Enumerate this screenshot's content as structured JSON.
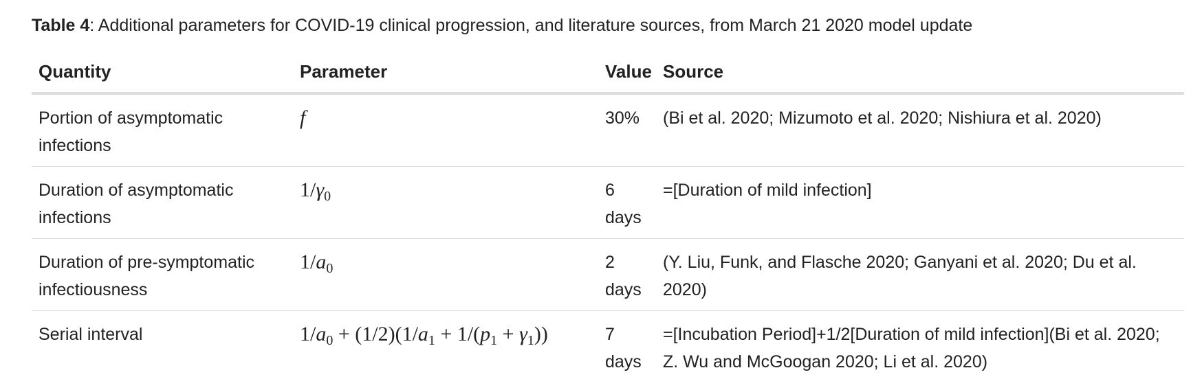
{
  "caption": {
    "label": "Table 4",
    "text": ": Additional parameters for COVID-19 clinical progression, and literature sources, from March 21 2020 model update"
  },
  "headers": {
    "quantity": "Quantity",
    "parameter": "Parameter",
    "value": "Value",
    "source": "Source"
  },
  "rows": [
    {
      "quantity": "Portion of asymptomatic infections",
      "parameter_var": "f",
      "value": "30%",
      "source": "(Bi et al. 2020; Mizumoto et al. 2020; Nishiura et al. 2020)"
    },
    {
      "quantity": "Duration of asymptomatic infections",
      "parameter_pre": "1/",
      "parameter_var": "γ",
      "parameter_sub": "0",
      "value": "6 days",
      "source": "=[Duration of mild infection]"
    },
    {
      "quantity": "Duration of pre-symptomatic infectiousness",
      "parameter_pre": "1/",
      "parameter_var": "a",
      "parameter_sub": "0",
      "value": "2 days",
      "source": "(Y. Liu, Funk, and Flasche 2020; Ganyani et al. 2020; Du et al. 2020)"
    },
    {
      "quantity": "Serial interval",
      "parameter_t1": "1/",
      "parameter_a0": "a",
      "parameter_s0": "0",
      "parameter_t2": " + (1/2)(1/",
      "parameter_a1": "a",
      "parameter_s1": "1",
      "parameter_t3": " + 1/(",
      "parameter_p1": "p",
      "parameter_sp": "1",
      "parameter_t4": " + ",
      "parameter_g1": "γ",
      "parameter_sg": "1",
      "parameter_t5": "))",
      "value": "7 days",
      "source": "=[Incubation Period]+1/2[Duration of mild infection](Bi et al. 2020; Z. Wu and McGoogan 2020; Li et al. 2020)"
    }
  ]
}
